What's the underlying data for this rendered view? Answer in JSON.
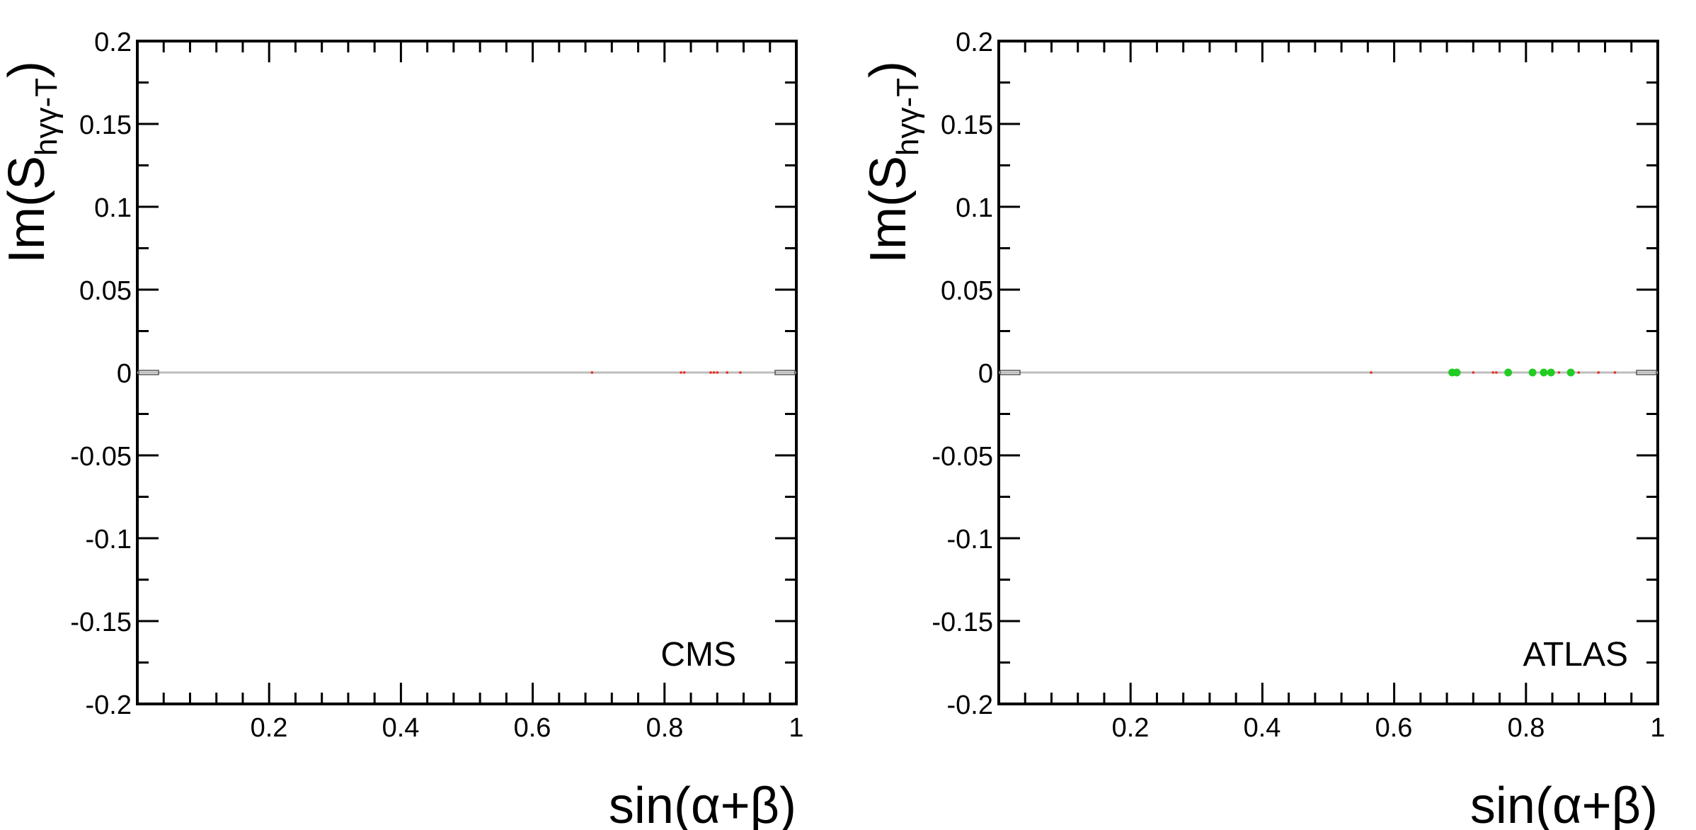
{
  "chart_data": [
    {
      "type": "scatter",
      "xlim": [
        0,
        1
      ],
      "ylim": [
        -0.2,
        0.2
      ],
      "xlabel": "sin(α+β)",
      "ylabel_main": "Im(S",
      "ylabel_sub": "hγγ-T",
      "ylabel_close": ")",
      "annotation": "CMS",
      "xticks": [
        0.2,
        0.4,
        0.6,
        0.8,
        1
      ],
      "xtick_labels": [
        "0.2",
        "0.4",
        "0.6",
        "0.8",
        "1"
      ],
      "yticks": [
        0.2,
        0.15,
        0.1,
        0.05,
        0,
        -0.05,
        -0.1,
        -0.15,
        -0.2
      ],
      "ytick_labels": [
        "0.2",
        "0.15",
        "0.1",
        "0.05",
        "0",
        "-0.05",
        "-0.1",
        "-0.15",
        "-0.2"
      ],
      "grid": false,
      "series": [
        {
          "color": "#bdbdbd",
          "style": "band",
          "x": [
            0,
            1
          ],
          "y": [
            0,
            0
          ]
        },
        {
          "color": "#e8281c",
          "style": "dots",
          "x": [
            0.69,
            0.825,
            0.83,
            0.87,
            0.875,
            0.88,
            0.895,
            0.915
          ],
          "y": [
            0,
            0,
            0,
            0,
            0,
            0,
            0,
            0
          ]
        }
      ]
    },
    {
      "type": "scatter",
      "xlim": [
        0,
        1
      ],
      "ylim": [
        -0.2,
        0.2
      ],
      "xlabel": "sin(α+β)",
      "ylabel_main": "Im(S",
      "ylabel_sub": "hγγ-T",
      "ylabel_close": ")",
      "annotation": "ATLAS",
      "xticks": [
        0.2,
        0.4,
        0.6,
        0.8,
        1
      ],
      "xtick_labels": [
        "0.2",
        "0.4",
        "0.6",
        "0.8",
        "1"
      ],
      "yticks": [
        0.2,
        0.15,
        0.1,
        0.05,
        0,
        -0.05,
        -0.1,
        -0.15,
        -0.2
      ],
      "ytick_labels": [
        "0.2",
        "0.15",
        "0.1",
        "0.05",
        "0",
        "-0.05",
        "-0.1",
        "-0.15",
        "-0.2"
      ],
      "grid": false,
      "series": [
        {
          "color": "#bdbdbd",
          "style": "band",
          "x": [
            0,
            1
          ],
          "y": [
            0,
            0
          ]
        },
        {
          "color": "#e8281c",
          "style": "dots",
          "x": [
            0.565,
            0.72,
            0.75,
            0.755,
            0.85,
            0.88,
            0.91,
            0.935
          ],
          "y": [
            0,
            0,
            0,
            0,
            0,
            0,
            0,
            0
          ]
        },
        {
          "color": "#22cc22",
          "style": "markers",
          "x": [
            0.688,
            0.695,
            0.773,
            0.81,
            0.827,
            0.838,
            0.868
          ],
          "y": [
            0,
            0,
            0,
            0,
            0,
            0,
            0
          ]
        }
      ]
    }
  ]
}
